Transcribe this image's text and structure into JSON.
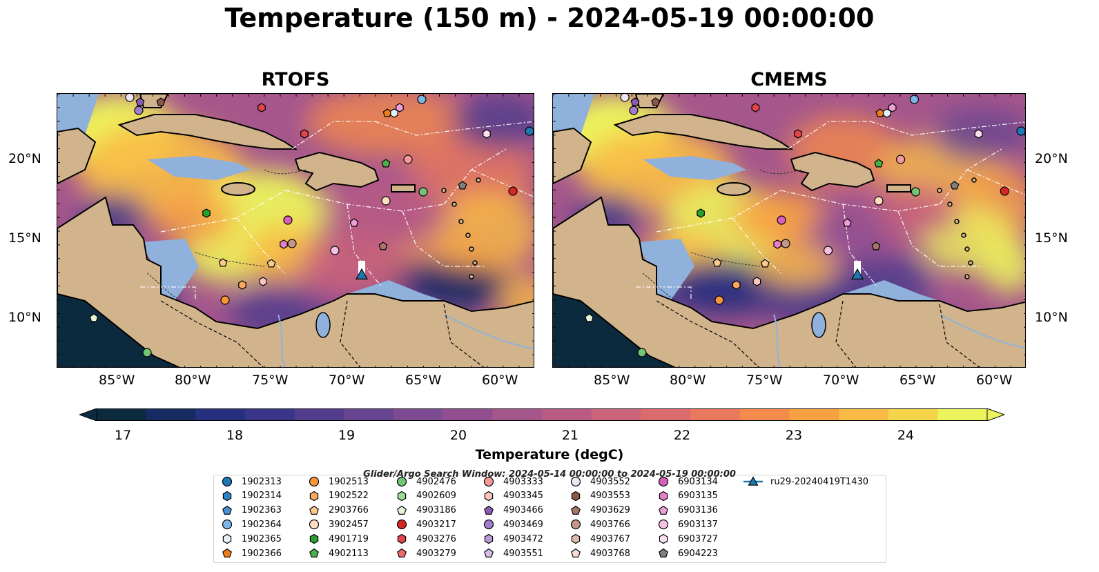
{
  "title": "Temperature (150 m) - 2024-05-19 00:00:00",
  "panels": [
    {
      "title": "RTOFS"
    },
    {
      "title": "CMEMS"
    }
  ],
  "lat_labels": [
    "20°N",
    "15°N",
    "10°N"
  ],
  "lon_labels": [
    "85°W",
    "80°W",
    "75°W",
    "70°W",
    "65°W",
    "60°W"
  ],
  "colorbar": {
    "label": "Temperature (degC)",
    "ticks": [
      "17",
      "18",
      "19",
      "20",
      "21",
      "22",
      "23",
      "24"
    ],
    "colors": [
      "#0b2a3e",
      "#152b62",
      "#26307e",
      "#3b3589",
      "#523d8c",
      "#674490",
      "#7d4b92",
      "#914f92",
      "#a5568c",
      "#b95b84",
      "#cb637b",
      "#db6c6d",
      "#e9795c",
      "#f28b4c",
      "#f8a143",
      "#f9bb45",
      "#f4d44a",
      "#ecf35d"
    ],
    "under_color": "#0b2a3e",
    "over_color": "#ecf35d"
  },
  "legend": {
    "title": "Glider/Argo Search Window: 2024-05-14 00:00:00 to 2024-05-19 00:00:00",
    "items": [
      {
        "label": "1902313",
        "marker": "circle",
        "color": "#1f77b4"
      },
      {
        "label": "1902314",
        "marker": "hexagon",
        "color": "#2b85c8"
      },
      {
        "label": "1902363",
        "marker": "pentagon",
        "color": "#4a90d9"
      },
      {
        "label": "1902364",
        "marker": "circle",
        "color": "#7bb6e5"
      },
      {
        "label": "1902365",
        "marker": "hexagon",
        "color": "#e6f2fb"
      },
      {
        "label": "1902366",
        "marker": "pentagon",
        "color": "#f07d1a"
      },
      {
        "label": "1902513",
        "marker": "circle",
        "color": "#f6953b"
      },
      {
        "label": "1902522",
        "marker": "hexagon",
        "color": "#f9a85f"
      },
      {
        "label": "2903766",
        "marker": "pentagon",
        "color": "#fcc98e"
      },
      {
        "label": "3902457",
        "marker": "circle",
        "color": "#fde0c2"
      },
      {
        "label": "4901719",
        "marker": "hexagon",
        "color": "#2ca02c"
      },
      {
        "label": "4902113",
        "marker": "pentagon",
        "color": "#48b248"
      },
      {
        "label": "4902476",
        "marker": "circle",
        "color": "#74c476"
      },
      {
        "label": "4902609",
        "marker": "hexagon",
        "color": "#a1d99b"
      },
      {
        "label": "4903186",
        "marker": "pentagon",
        "color": "#e5f5d8"
      },
      {
        "label": "4903217",
        "marker": "circle",
        "color": "#d62728"
      },
      {
        "label": "4903276",
        "marker": "hexagon",
        "color": "#e0464a"
      },
      {
        "label": "4903279",
        "marker": "pentagon",
        "color": "#ef6b6e"
      },
      {
        "label": "4903333",
        "marker": "circle",
        "color": "#f4999a"
      },
      {
        "label": "4903345",
        "marker": "hexagon",
        "color": "#fac4c3"
      },
      {
        "label": "4903466",
        "marker": "pentagon",
        "color": "#8a5cb8"
      },
      {
        "label": "4903469",
        "marker": "circle",
        "color": "#a07ccc"
      },
      {
        "label": "4903472",
        "marker": "hexagon",
        "color": "#b99ad8"
      },
      {
        "label": "4903551",
        "marker": "pentagon",
        "color": "#d5bfe8"
      },
      {
        "label": "4903552",
        "marker": "circle",
        "color": "#efe3f6"
      },
      {
        "label": "4903553",
        "marker": "hexagon",
        "color": "#8c564b"
      },
      {
        "label": "4903629",
        "marker": "pentagon",
        "color": "#a87566"
      },
      {
        "label": "4903766",
        "marker": "circle",
        "color": "#c4968a"
      },
      {
        "label": "4903767",
        "marker": "hexagon",
        "color": "#deb9ab"
      },
      {
        "label": "4903768",
        "marker": "pentagon",
        "color": "#f3ddd3"
      },
      {
        "label": "6903134",
        "marker": "circle",
        "color": "#d660b8"
      },
      {
        "label": "6903135",
        "marker": "hexagon",
        "color": "#e67fcb"
      },
      {
        "label": "6903136",
        "marker": "pentagon",
        "color": "#ef9fd8"
      },
      {
        "label": "6903137",
        "marker": "circle",
        "color": "#f5c0e3"
      },
      {
        "label": "6903727",
        "marker": "hexagon",
        "color": "#fbe0f1"
      },
      {
        "label": "6904223",
        "marker": "pentagon",
        "color": "#7f7f7f"
      },
      {
        "label": "ru29-20240419T1430",
        "marker": "triangle-line",
        "color": "#1f77b4"
      }
    ]
  }
}
